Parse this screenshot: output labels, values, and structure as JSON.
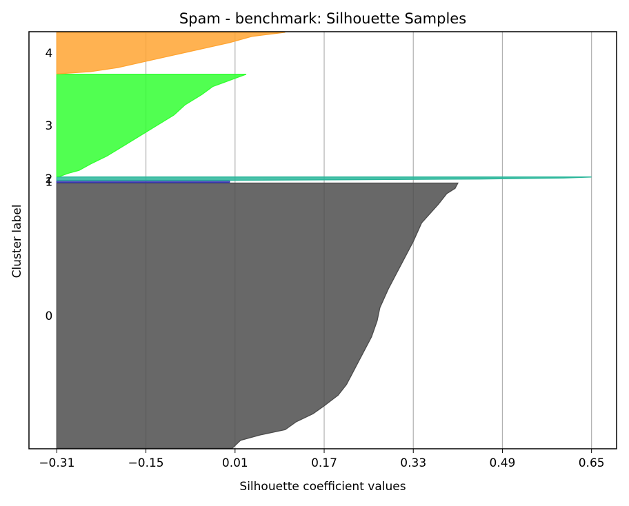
{
  "chart_data": {
    "type": "area",
    "title": "Spam - benchmark: Silhouette Samples",
    "xlabel": "Silhouette coefficient values",
    "ylabel": "Cluster label",
    "xlim": [
      -0.36,
      0.695
    ],
    "x_ticks": [
      -0.31,
      -0.15,
      0.01,
      0.17,
      0.33,
      0.49,
      0.65
    ],
    "x_tick_labels": [
      "−0.31",
      "−0.15",
      "0.01",
      "0.17",
      "0.33",
      "0.49",
      "0.65"
    ],
    "grid": "x-only",
    "clusters": [
      {
        "label": "0",
        "color": "#4d4d4d",
        "size": 480,
        "silhouette_profile": [
          [
            0.0,
            0.41
          ],
          [
            0.02,
            0.405
          ],
          [
            0.04,
            0.39
          ],
          [
            0.08,
            0.375
          ],
          [
            0.15,
            0.345
          ],
          [
            0.22,
            0.33
          ],
          [
            0.28,
            0.315
          ],
          [
            0.34,
            0.3
          ],
          [
            0.4,
            0.285
          ],
          [
            0.47,
            0.27
          ],
          [
            0.52,
            0.265
          ],
          [
            0.58,
            0.255
          ],
          [
            0.64,
            0.24
          ],
          [
            0.7,
            0.225
          ],
          [
            0.76,
            0.21
          ],
          [
            0.8,
            0.195
          ],
          [
            0.84,
            0.17
          ],
          [
            0.87,
            0.15
          ],
          [
            0.9,
            0.12
          ],
          [
            0.93,
            0.1
          ],
          [
            0.95,
            0.055
          ],
          [
            0.97,
            0.02
          ],
          [
            1.0,
            0.005
          ]
        ]
      },
      {
        "label": "1",
        "color": "#3b3bb3",
        "size": 3,
        "silhouette_profile": [
          [
            0.0,
            0.0
          ],
          [
            1.0,
            0.0
          ]
        ]
      },
      {
        "label": "2",
        "color": "#2ab69a",
        "size": 6,
        "silhouette_profile": [
          [
            0.0,
            0.65
          ],
          [
            0.3,
            0.6
          ],
          [
            0.6,
            0.45
          ],
          [
            1.0,
            0.0
          ]
        ]
      },
      {
        "label": "3",
        "color": "#33ff33",
        "size": 185,
        "silhouette_profile": [
          [
            0.0,
            0.03
          ],
          [
            0.04,
            0.01
          ],
          [
            0.08,
            -0.01
          ],
          [
            0.12,
            -0.03
          ],
          [
            0.2,
            -0.05
          ],
          [
            0.3,
            -0.08
          ],
          [
            0.4,
            -0.1
          ],
          [
            0.5,
            -0.13
          ],
          [
            0.6,
            -0.16
          ],
          [
            0.7,
            -0.19
          ],
          [
            0.8,
            -0.22
          ],
          [
            0.88,
            -0.25
          ],
          [
            0.94,
            -0.27
          ],
          [
            0.97,
            -0.29
          ],
          [
            1.0,
            -0.305
          ]
        ]
      },
      {
        "label": "4",
        "color": "#ffa533",
        "size": 75,
        "silhouette_profile": [
          [
            0.0,
            0.1
          ],
          [
            0.1,
            0.04
          ],
          [
            0.25,
            0.0
          ],
          [
            0.4,
            -0.05
          ],
          [
            0.55,
            -0.1
          ],
          [
            0.7,
            -0.15
          ],
          [
            0.85,
            -0.2
          ],
          [
            0.95,
            -0.25
          ],
          [
            1.0,
            -0.305
          ]
        ]
      }
    ]
  }
}
